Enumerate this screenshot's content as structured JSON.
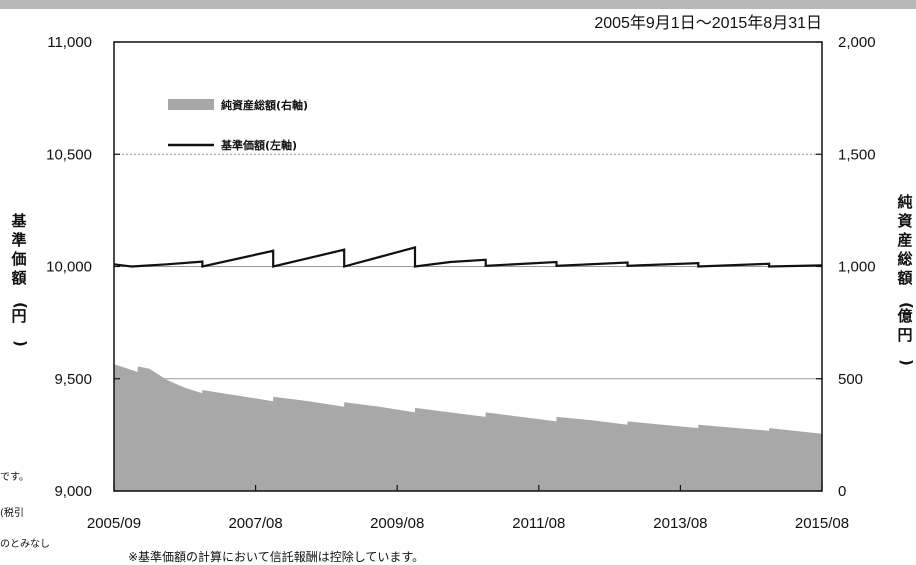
{
  "chart_data": {
    "type": "area+line",
    "period": "2005年9月1日～2015年8月31日",
    "footnote": "※基準価額の計算において信託報酬は控除しています。",
    "side_text": [
      "です。",
      "(税引",
      "のとみなし"
    ],
    "left_axis": {
      "label": "基準価額(円)",
      "ticks": [
        "11,000",
        "10,500",
        "10,000",
        "9,500",
        "9,000"
      ],
      "range": [
        9000,
        11000
      ]
    },
    "right_axis": {
      "label": "純資産総額(億円)",
      "ticks": [
        "2,000",
        "1,500",
        "1,000",
        "500",
        "0"
      ],
      "range": [
        0,
        2000
      ]
    },
    "x_ticks": [
      "2005/09",
      "2007/08",
      "2009/08",
      "2011/08",
      "2013/08",
      "2015/08"
    ],
    "grid": "dotted horizontal lines at 1,500 / 1,000 / 500 (right axis)",
    "series": [
      {
        "name": "純資産総額(右軸)",
        "axis": "right",
        "kind": "area",
        "color": "#a8a8a8",
        "points": [
          [
            "2005-09-01",
            565
          ],
          [
            "2006-01-01",
            530
          ],
          [
            "2006-01-01",
            555
          ],
          [
            "2006-03-01",
            545
          ],
          [
            "2006-06-01",
            495
          ],
          [
            "2006-09-01",
            460
          ],
          [
            "2006-12-01",
            435
          ],
          [
            "2006-12-01",
            450
          ],
          [
            "2007-06-01",
            425
          ],
          [
            "2007-12-01",
            400
          ],
          [
            "2007-12-01",
            420
          ],
          [
            "2008-06-01",
            400
          ],
          [
            "2008-12-01",
            375
          ],
          [
            "2008-12-01",
            395
          ],
          [
            "2009-06-01",
            375
          ],
          [
            "2009-12-01",
            350
          ],
          [
            "2009-12-01",
            370
          ],
          [
            "2010-06-01",
            350
          ],
          [
            "2010-12-01",
            330
          ],
          [
            "2010-12-01",
            350
          ],
          [
            "2011-06-01",
            330
          ],
          [
            "2011-12-01",
            310
          ],
          [
            "2011-12-01",
            330
          ],
          [
            "2012-06-01",
            315
          ],
          [
            "2012-12-01",
            295
          ],
          [
            "2012-12-01",
            310
          ],
          [
            "2013-06-01",
            295
          ],
          [
            "2013-12-01",
            280
          ],
          [
            "2013-12-01",
            295
          ],
          [
            "2014-06-01",
            282
          ],
          [
            "2014-12-01",
            268
          ],
          [
            "2014-12-01",
            280
          ],
          [
            "2015-08-31",
            255
          ]
        ]
      },
      {
        "name": "基準価額(左軸)",
        "axis": "left",
        "kind": "line",
        "color": "#111111",
        "points": [
          [
            "2005-09-01",
            10010
          ],
          [
            "2005-12-01",
            10000
          ],
          [
            "2006-06-01",
            10010
          ],
          [
            "2006-12-01",
            10022
          ],
          [
            "2006-12-01",
            10000
          ],
          [
            "2007-12-01",
            10070
          ],
          [
            "2007-12-01",
            10000
          ],
          [
            "2008-12-01",
            10075
          ],
          [
            "2008-12-01",
            10000
          ],
          [
            "2009-12-01",
            10085
          ],
          [
            "2009-12-01",
            10000
          ],
          [
            "2010-06-01",
            10020
          ],
          [
            "2010-12-01",
            10030
          ],
          [
            "2010-12-01",
            10003
          ],
          [
            "2011-12-01",
            10020
          ],
          [
            "2011-12-01",
            10003
          ],
          [
            "2012-12-01",
            10018
          ],
          [
            "2012-12-01",
            10003
          ],
          [
            "2013-12-01",
            10015
          ],
          [
            "2013-12-01",
            10000
          ],
          [
            "2014-12-01",
            10012
          ],
          [
            "2014-12-01",
            10000
          ],
          [
            "2015-08-31",
            10005
          ]
        ]
      }
    ]
  }
}
